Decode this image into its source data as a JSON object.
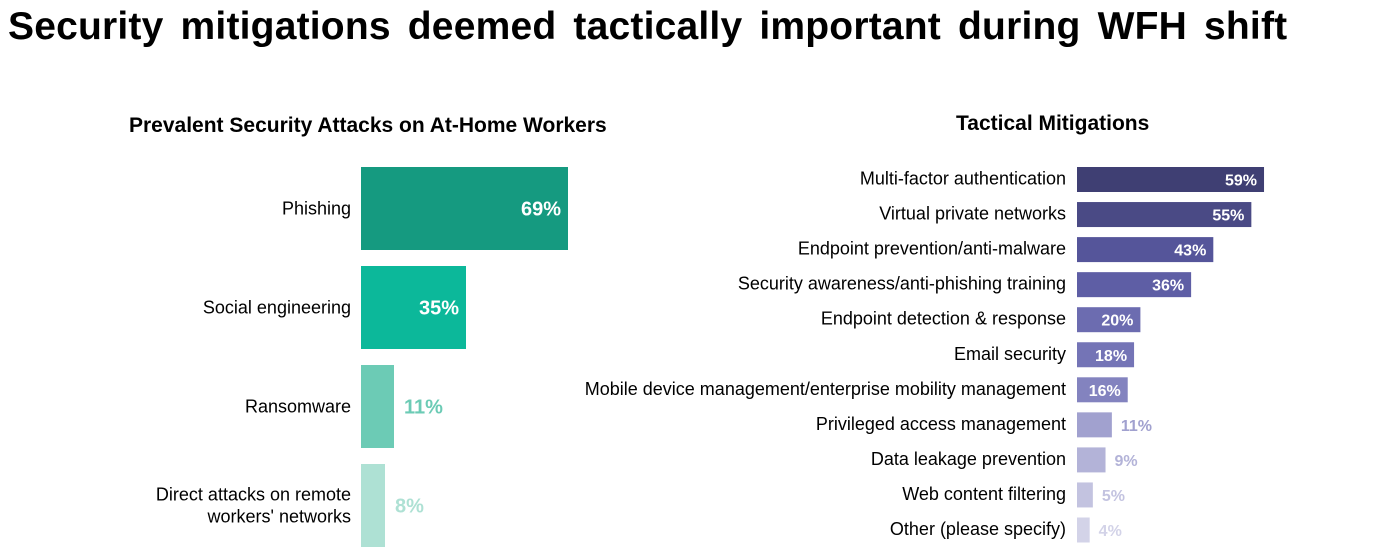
{
  "title": "Security mitigations deemed tactically important during WFH shift",
  "chart_data": [
    {
      "type": "bar",
      "orientation": "horizontal",
      "title": "Prevalent Security Attacks on At-Home Workers",
      "categories": [
        "Phishing",
        "Social engineering",
        "Ransomware",
        "Direct attacks on remote workers' networks"
      ],
      "category_lines": [
        [
          "Phishing"
        ],
        [
          "Social engineering"
        ],
        [
          "Ransomware"
        ],
        [
          "Direct attacks on remote",
          "workers' networks"
        ]
      ],
      "values": [
        69,
        35,
        11,
        8
      ],
      "value_labels": [
        "69%",
        "35%",
        "11%",
        "8%"
      ],
      "colors": [
        "#159a80",
        "#0cb89a",
        "#6ccbb5",
        "#aee1d4"
      ],
      "grid": false,
      "legend": "none"
    },
    {
      "type": "bar",
      "orientation": "horizontal",
      "title": "Tactical Mitigations",
      "categories": [
        "Multi-factor authentication",
        "Virtual private networks",
        "Endpoint prevention/anti-malware",
        "Security awareness/anti-phishing training",
        "Endpoint detection & response",
        "Email security",
        "Mobile device management/enterprise mobility management",
        "Privileged access management",
        "Data leakage prevention",
        "Web content filtering",
        "Other (please specify)"
      ],
      "values": [
        59,
        55,
        43,
        36,
        20,
        18,
        16,
        11,
        9,
        5,
        4
      ],
      "value_labels": [
        "59%",
        "55%",
        "43%",
        "36%",
        "20%",
        "18%",
        "16%",
        "11%",
        "9%",
        "5%",
        "4%"
      ],
      "colors": [
        "#3f3f73",
        "#4a4a85",
        "#55559a",
        "#5e5ea5",
        "#6c6cb0",
        "#7474b6",
        "#8383bf",
        "#a1a1cf",
        "#b3b3d8",
        "#c3c3e0",
        "#d3d3e8"
      ],
      "grid": false,
      "legend": "none"
    }
  ]
}
